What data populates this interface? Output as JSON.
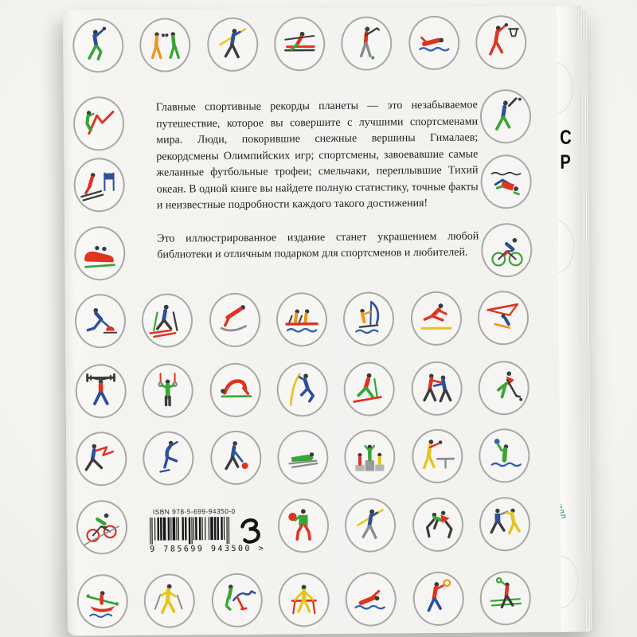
{
  "book": {
    "paragraph1": "Главные спортивные рекорды планеты — это незабываемое путешествие, которое вы совершите с лучшими спортсменами мира. Люди, покорившие снежные вершины Гималаев; рекордсмены Олимпийских игр; спортсмены, завоевавшие самые желанные футбольные трофеи; смельчаки, переплывшие Тихий океан. В одной книге вы найдете полную статистику, точные факты и неизвестные подробности каждого такого достижения!",
    "paragraph2": "Это иллюстрированное издание станет украшением любой библиотеки и отличным подарком для спортсменов и любителей.",
    "isbn_label": "ISBN 978-5-699-94350-0",
    "barcode_digits": "9 785699 943500",
    "barcode_suffix": ">",
    "publisher_logo": "eksmo-logo",
    "edge": {
      "letters": [
        "С",
        "Р"
      ],
      "small_text": "ИЛЛ"
    }
  },
  "colors": {
    "cover": "#f3f2ef",
    "circle_border": "#a8a8a6",
    "pictogram_green": "#3aa437",
    "pictogram_red": "#e03320",
    "pictogram_blue": "#2c4f9e",
    "pictogram_orange": "#ef941c",
    "pictogram_yellow": "#e5c51b",
    "wave_blue": "#2e5fb0",
    "edge_accent_teal": "#2fa093"
  },
  "icons": {
    "row_top": [
      "handball",
      "boxing",
      "javelin-throw",
      "rowing-scull",
      "golf",
      "swimming",
      "basketball"
    ],
    "left_column": [
      "mountaineering",
      "alpine-skiing",
      "bobsleigh"
    ],
    "right_column": [
      "baseball",
      "scuba-diving",
      "cycling"
    ],
    "row_4": [
      "curling",
      "cross-country-skiing",
      "ski-jumping",
      "rowing-team",
      "windsurfing",
      "long-jump",
      "hang-gliding"
    ],
    "row_5": [
      "weightlifting",
      "gymnastics-rings",
      "high-jump",
      "pole-vault",
      "nordic-skiing",
      "judo",
      "field-hockey"
    ],
    "row_6": [
      "fencing",
      "figure-skating",
      "bowling",
      "luge",
      "winners-podium",
      "table-tennis",
      "water-polo"
    ],
    "row_7": [
      "track-cycling",
      "ball-exercise",
      "javelin-throw-2",
      "wrestling",
      "relay-race"
    ],
    "row_8": [
      "kayaking",
      "nordic-walking",
      "equestrian-polo",
      "gymnastics-vault",
      "swimming-crawl",
      "tennis",
      "badminton"
    ]
  }
}
